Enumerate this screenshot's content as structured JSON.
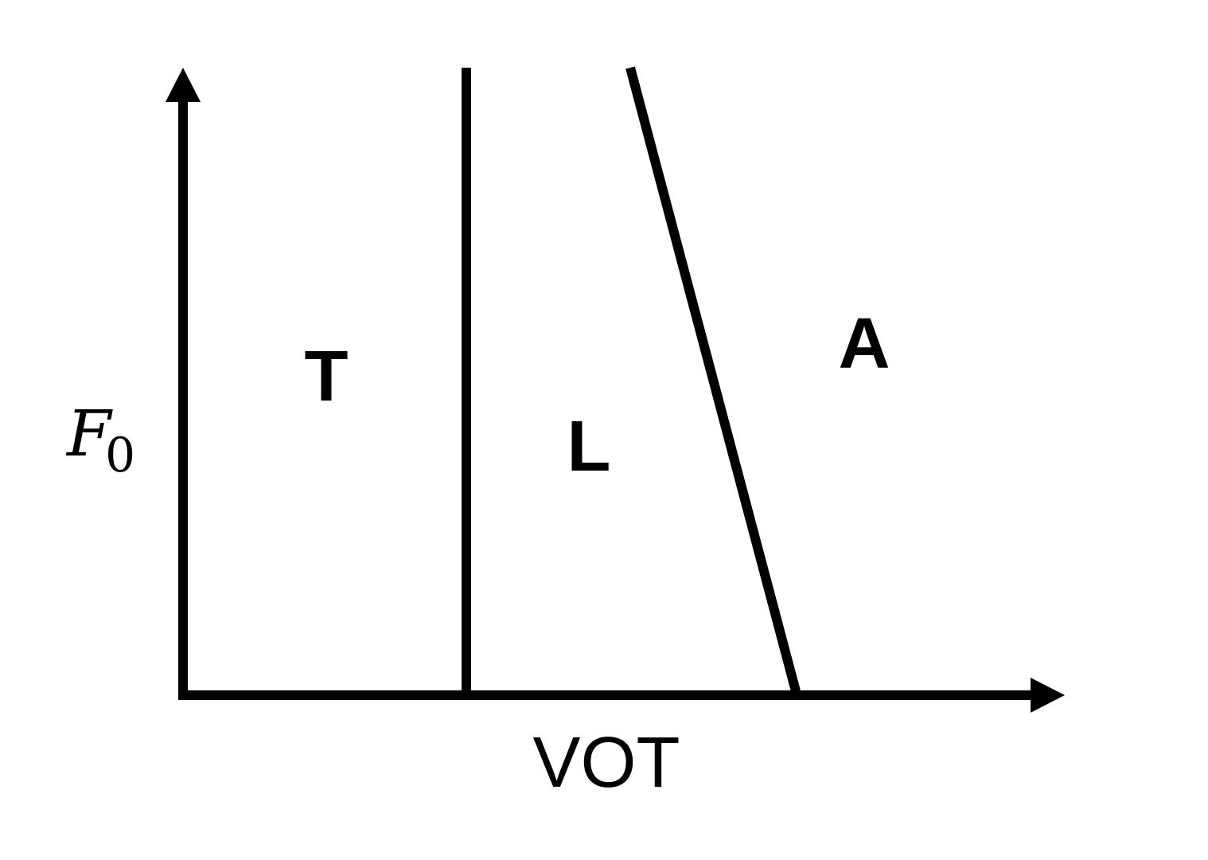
{
  "axes": {
    "x_label": "VOT",
    "y_label_main": "F",
    "y_label_subscript": "0"
  },
  "regions": {
    "T": "T",
    "L": "L",
    "A": "A"
  },
  "colors": {
    "stroke": "#000000",
    "background": "#ffffff"
  }
}
